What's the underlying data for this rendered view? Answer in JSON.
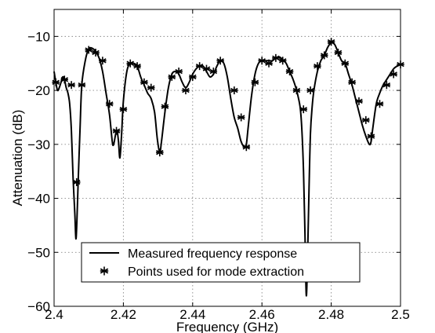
{
  "chart_data": {
    "type": "line",
    "xlabel": "Frequency (GHz)",
    "ylabel": "Attenuation (dB)",
    "xlim": [
      2.4,
      2.5
    ],
    "ylim": [
      -60,
      -5
    ],
    "x_ticks": [
      2.4,
      2.42,
      2.44,
      2.46,
      2.48,
      2.5
    ],
    "x_tick_labels": [
      "2.4",
      "2.42",
      "2.44",
      "2.46",
      "2.48",
      "2.5"
    ],
    "y_ticks": [
      -60,
      -50,
      -40,
      -30,
      -20,
      -10
    ],
    "y_tick_labels": [
      "−60",
      "−50",
      "−40",
      "−30",
      "−20",
      "−10"
    ],
    "grid": true,
    "legend_position": "bottom-left",
    "series": [
      {
        "name": "Measured frequency response",
        "style": "solid-line",
        "color": "#000000",
        "x": [
          2.4,
          2.4005,
          2.401,
          2.4015,
          2.402,
          2.4025,
          2.403,
          2.4035,
          2.404,
          2.4045,
          2.405,
          2.4055,
          2.406,
          2.4063,
          2.4066,
          2.407,
          2.4075,
          2.408,
          2.409,
          2.41,
          2.411,
          2.412,
          2.413,
          2.414,
          2.415,
          2.416,
          2.4168,
          2.4172,
          2.4178,
          2.4182,
          2.4186,
          2.419,
          2.4195,
          2.42,
          2.421,
          2.422,
          2.423,
          2.424,
          2.425,
          2.426,
          2.427,
          2.428,
          2.429,
          2.4298,
          2.4305,
          2.431,
          2.432,
          2.433,
          2.434,
          2.435,
          2.436,
          2.437,
          2.438,
          2.439,
          2.44,
          2.441,
          2.442,
          2.443,
          2.444,
          2.445,
          2.446,
          2.447,
          2.448,
          2.449,
          2.45,
          2.451,
          2.452,
          2.453,
          2.454,
          2.455,
          2.4555,
          2.456,
          2.457,
          2.458,
          2.459,
          2.46,
          2.461,
          2.462,
          2.463,
          2.464,
          2.465,
          2.466,
          2.467,
          2.468,
          2.469,
          2.47,
          2.471,
          2.4715,
          2.472,
          2.4724,
          2.4728,
          2.4732,
          2.4736,
          2.474,
          2.4745,
          2.475,
          2.476,
          2.477,
          2.478,
          2.479,
          2.48,
          2.481,
          2.482,
          2.483,
          2.484,
          2.485,
          2.486,
          2.487,
          2.488,
          2.489,
          2.49,
          2.491,
          2.4915,
          2.492,
          2.493,
          2.494,
          2.495,
          2.496,
          2.497,
          2.498,
          2.499,
          2.5
        ],
        "y": [
          -16.5,
          -18.5,
          -20.0,
          -19.5,
          -18.5,
          -17.5,
          -18.0,
          -19.5,
          -20.5,
          -22.5,
          -27.5,
          -36.5,
          -43.0,
          -47.5,
          -44.0,
          -36.0,
          -27.0,
          -19.0,
          -14.5,
          -12.3,
          -12.2,
          -12.8,
          -14.0,
          -16.5,
          -20.5,
          -24.5,
          -29.5,
          -30.0,
          -28.0,
          -27.5,
          -29.5,
          -32.5,
          -28.0,
          -22.0,
          -16.5,
          -15.0,
          -15.0,
          -15.5,
          -17.5,
          -19.0,
          -20.5,
          -21.5,
          -24.0,
          -29.0,
          -31.5,
          -29.5,
          -24.0,
          -19.5,
          -17.0,
          -16.5,
          -17.0,
          -18.5,
          -19.5,
          -18.5,
          -17.0,
          -16.0,
          -15.5,
          -15.5,
          -16.5,
          -17.5,
          -17.0,
          -15.5,
          -14.5,
          -15.0,
          -17.5,
          -21.5,
          -25.0,
          -27.0,
          -29.5,
          -30.5,
          -30.0,
          -27.0,
          -21.0,
          -17.0,
          -15.0,
          -14.5,
          -14.5,
          -14.5,
          -14.5,
          -14.0,
          -13.8,
          -14.3,
          -15.0,
          -16.5,
          -18.0,
          -20.0,
          -23.0,
          -27.0,
          -35.0,
          -46.0,
          -58.0,
          -50.0,
          -38.0,
          -28.0,
          -23.0,
          -20.0,
          -16.5,
          -14.5,
          -13.5,
          -12.0,
          -11.2,
          -11.5,
          -13.0,
          -14.5,
          -15.0,
          -17.0,
          -19.0,
          -21.5,
          -24.0,
          -26.5,
          -28.5,
          -30.0,
          -29.5,
          -27.0,
          -22.5,
          -20.5,
          -19.0,
          -18.0,
          -17.0,
          -16.0,
          -15.5,
          -15.2
        ]
      },
      {
        "name": "Points used for mode extraction",
        "style": "asterisk-markers",
        "color": "#000000",
        "x": [
          2.4005,
          2.403,
          2.405,
          2.4065,
          2.408,
          2.41,
          2.412,
          2.414,
          2.416,
          2.418,
          2.42,
          2.422,
          2.424,
          2.426,
          2.428,
          2.4305,
          2.432,
          2.434,
          2.436,
          2.438,
          2.44,
          2.442,
          2.444,
          2.446,
          2.448,
          2.452,
          2.454,
          2.4555,
          2.458,
          2.46,
          2.462,
          2.464,
          2.466,
          2.468,
          2.47,
          2.472,
          2.474,
          2.476,
          2.478,
          2.48,
          2.482,
          2.484,
          2.486,
          2.488,
          2.49,
          2.4915,
          2.494,
          2.496,
          2.498,
          2.5
        ],
        "y": [
          -18.5,
          -18.0,
          -19.0,
          -37.0,
          -19.0,
          -12.5,
          -13.0,
          -14.5,
          -22.5,
          -27.5,
          -23.5,
          -15.0,
          -15.5,
          -18.5,
          -19.5,
          -31.5,
          -23.0,
          -17.5,
          -16.5,
          -20.0,
          -17.5,
          -15.5,
          -16.0,
          -16.5,
          -14.5,
          -20.0,
          -25.0,
          -30.5,
          -18.5,
          -14.5,
          -15.0,
          -14.0,
          -14.5,
          -16.5,
          -20.0,
          -23.5,
          -20.0,
          -15.5,
          -13.5,
          -11.0,
          -13.0,
          -15.0,
          -18.5,
          -22.0,
          -25.5,
          -28.5,
          -22.5,
          -19.0,
          -17.0,
          -15.2
        ]
      }
    ]
  }
}
